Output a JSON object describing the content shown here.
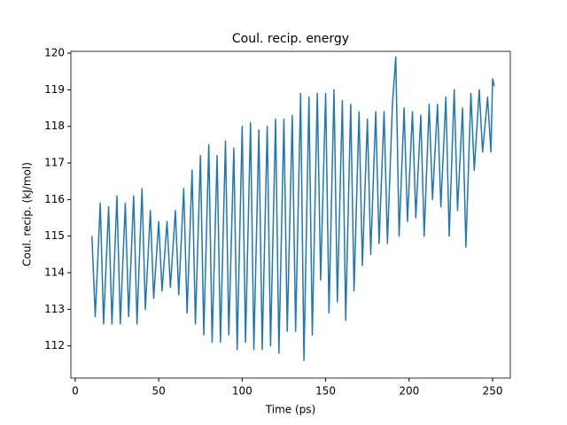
{
  "chart_data": {
    "type": "line",
    "title": "Coul. recip. energy",
    "x_label": "Time (ps)",
    "y_label": "Coul. recip. (kJ/mol)",
    "x": [
      10,
      12,
      15,
      17,
      20,
      22,
      25,
      27,
      30,
      32,
      35,
      37,
      40,
      42,
      45,
      47,
      50,
      52,
      55,
      57,
      60,
      62,
      65,
      67,
      70,
      72,
      75,
      77,
      80,
      82,
      85,
      87,
      90,
      92,
      95,
      97,
      100,
      102,
      105,
      107,
      110,
      112,
      115,
      117,
      120,
      122,
      125,
      127,
      130,
      132,
      135,
      137,
      140,
      142,
      145,
      147,
      150,
      152,
      155,
      157,
      160,
      162,
      165,
      167,
      170,
      172,
      175,
      177,
      180,
      182,
      185,
      187,
      190,
      192,
      194,
      197,
      199,
      202,
      204,
      207,
      209,
      212,
      214,
      217,
      219,
      222,
      224,
      227,
      229,
      232,
      234,
      237,
      239,
      242,
      244,
      247,
      249,
      250,
      251
    ],
    "series": [
      {
        "name": "Coul. recip.",
        "color": "#1f77b4",
        "values": [
          115.0,
          112.8,
          115.9,
          112.6,
          115.8,
          112.6,
          116.1,
          112.6,
          115.9,
          112.8,
          116.1,
          112.6,
          116.3,
          113.0,
          115.7,
          113.3,
          115.4,
          113.5,
          115.4,
          113.6,
          115.7,
          113.4,
          116.3,
          112.9,
          116.8,
          112.6,
          117.2,
          112.3,
          117.5,
          112.1,
          117.2,
          112.1,
          117.6,
          112.3,
          117.4,
          111.9,
          118.0,
          112.1,
          118.1,
          111.9,
          117.9,
          111.9,
          118.0,
          112.0,
          118.2,
          111.8,
          118.2,
          112.4,
          118.3,
          112.4,
          118.9,
          111.6,
          118.8,
          112.3,
          118.9,
          113.8,
          118.9,
          112.9,
          119.0,
          113.2,
          118.7,
          112.7,
          118.6,
          113.5,
          118.4,
          114.2,
          118.2,
          114.5,
          118.4,
          114.8,
          118.4,
          114.8,
          118.6,
          119.9,
          115.0,
          118.5,
          115.4,
          118.4,
          115.5,
          118.3,
          115.0,
          118.6,
          116.0,
          118.6,
          115.8,
          118.8,
          115.0,
          119.0,
          115.7,
          118.5,
          114.7,
          118.9,
          116.8,
          119.0,
          117.3,
          118.8,
          117.3,
          119.3,
          119.1
        ]
      }
    ],
    "xlim": [
      -2.6,
      260.6
    ],
    "ylim": [
      111.12,
      120.05
    ],
    "xticks": [
      0,
      50,
      100,
      150,
      200,
      250
    ],
    "yticks": [
      112,
      113,
      114,
      115,
      116,
      117,
      118,
      119,
      120
    ]
  }
}
